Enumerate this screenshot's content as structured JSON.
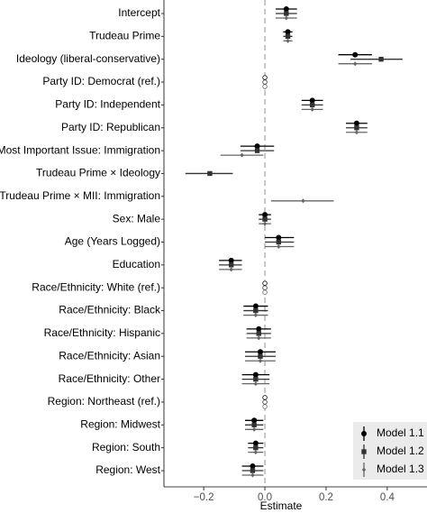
{
  "chart_data": {
    "type": "coefficient",
    "x_label": "Estimate",
    "categories": [
      "Intercept",
      "Trudeau Prime",
      "Ideology (liberal-conservative)",
      "Party ID: Democrat (ref.)",
      "Party ID: Independent",
      "Party ID: Republican",
      "Most Important Issue: Immigration",
      "Trudeau Prime × Ideology",
      "Trudeau Prime × MII: Immigration",
      "Sex: Male",
      "Age (Years Logged)",
      "Education",
      "Race/Ethnicity: White (ref.)",
      "Race/Ethnicity: Black",
      "Race/Ethnicity: Hispanic",
      "Race/Ethnicity: Asian",
      "Race/Ethnicity: Other",
      "Region: Northeast (ref.)",
      "Region: Midwest",
      "Region: South",
      "Region: West"
    ],
    "series": [
      {
        "name": "Model 1.1",
        "color": "#000000",
        "shape": "circle",
        "values": [
          0.07,
          0.075,
          0.295,
          0,
          0.155,
          0.3,
          -0.025,
          null,
          null,
          0.0,
          0.045,
          -0.11,
          0,
          -0.03,
          -0.02,
          -0.015,
          -0.03,
          0,
          -0.035,
          -0.03,
          -0.04
        ],
        "lower": [
          0.035,
          0.06,
          0.24,
          null,
          0.12,
          0.265,
          -0.08,
          null,
          null,
          -0.02,
          0.0,
          -0.15,
          null,
          -0.07,
          -0.06,
          -0.065,
          -0.075,
          null,
          -0.065,
          -0.055,
          -0.075
        ],
        "upper": [
          0.105,
          0.09,
          0.35,
          null,
          0.19,
          0.335,
          0.03,
          null,
          null,
          0.02,
          0.095,
          -0.075,
          null,
          0.01,
          0.02,
          0.035,
          0.015,
          null,
          -0.005,
          -0.005,
          -0.005
        ]
      },
      {
        "name": "Model 1.2",
        "color": "#333333",
        "shape": "square",
        "values": [
          0.07,
          0.075,
          0.38,
          0,
          0.155,
          0.3,
          -0.025,
          -0.18,
          null,
          0.0,
          0.045,
          -0.11,
          0,
          -0.03,
          -0.02,
          -0.015,
          -0.03,
          0,
          -0.035,
          -0.03,
          -0.04
        ],
        "lower": [
          0.035,
          0.06,
          0.28,
          null,
          0.12,
          0.265,
          -0.08,
          -0.26,
          null,
          -0.02,
          0.0,
          -0.15,
          null,
          -0.07,
          -0.06,
          -0.065,
          -0.075,
          null,
          -0.065,
          -0.055,
          -0.075
        ],
        "upper": [
          0.105,
          0.09,
          0.45,
          null,
          0.19,
          0.335,
          0.03,
          -0.105,
          null,
          0.02,
          0.095,
          -0.075,
          null,
          0.01,
          0.02,
          0.035,
          0.015,
          null,
          -0.005,
          -0.005,
          -0.005
        ]
      },
      {
        "name": "Model 1.3",
        "color": "#666666",
        "shape": "diamond",
        "values": [
          0.07,
          0.075,
          0.295,
          0,
          0.155,
          0.3,
          -0.075,
          null,
          0.125,
          0.0,
          0.045,
          -0.11,
          0,
          -0.03,
          -0.02,
          -0.015,
          -0.03,
          0,
          -0.035,
          -0.03,
          -0.04
        ],
        "lower": [
          0.035,
          0.06,
          0.24,
          null,
          0.12,
          0.265,
          -0.145,
          null,
          0.02,
          -0.02,
          0.0,
          -0.15,
          null,
          -0.07,
          -0.06,
          -0.065,
          -0.075,
          null,
          -0.065,
          -0.055,
          -0.075
        ],
        "upper": [
          0.105,
          0.09,
          0.35,
          null,
          0.19,
          0.335,
          -0.005,
          null,
          0.225,
          0.02,
          0.095,
          -0.075,
          null,
          0.01,
          0.02,
          0.035,
          0.015,
          null,
          -0.005,
          -0.005,
          -0.005
        ]
      }
    ],
    "xlim": [
      -0.33,
      0.53
    ],
    "xticks": [
      {
        "value": -0.2,
        "label": "−0.2"
      },
      {
        "value": 0,
        "label": "0.0"
      },
      0.2,
      0.4
    ],
    "ref_line": 0,
    "legend": "bottom-right"
  }
}
